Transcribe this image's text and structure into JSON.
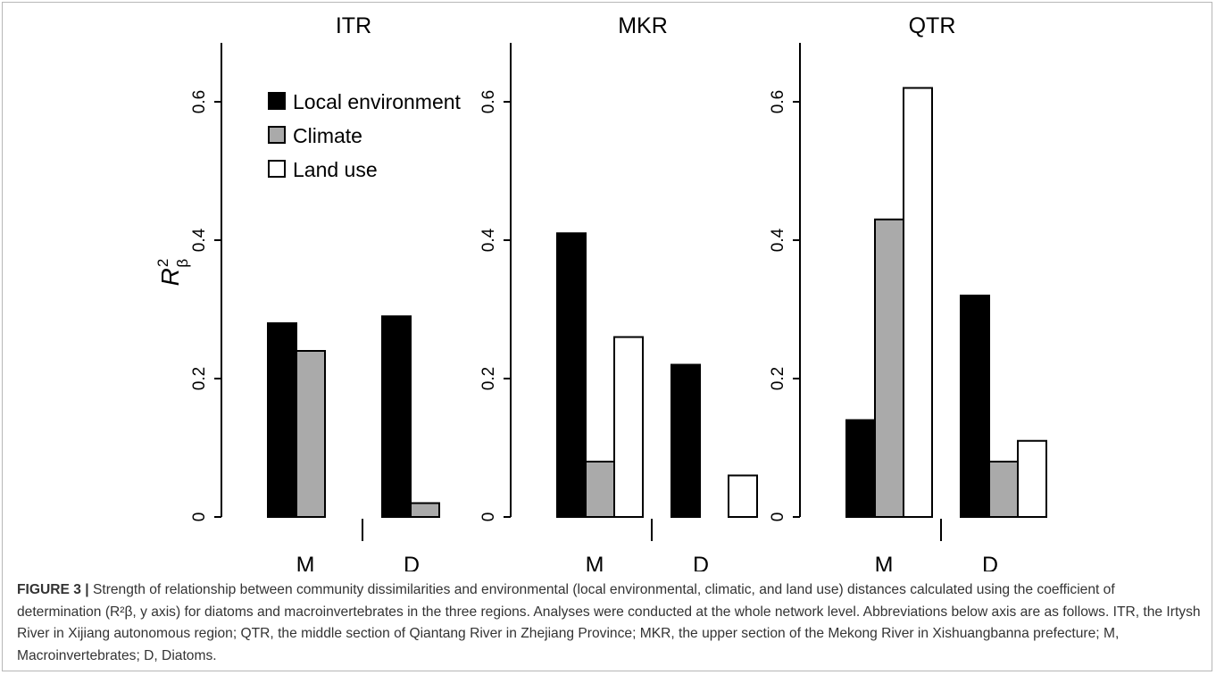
{
  "figure": {
    "caption_label": "FIGURE 3 |",
    "caption_text": " Strength of relationship between community dissimilarities and environmental (local environmental, climatic, and land use) distances calculated using the coefficient of determination (R²β, y axis) for diatoms and macroinvertebrates in the three regions. Analyses were conducted at the whole network level. Abbreviations below axis are as follows. ITR, the Irtysh River in Xijiang autonomous region; QTR, the middle section of Qiantang River in Zhejiang Province; MKR, the upper section of the Mekong River in Xishuangbanna prefecture; M, Macroinvertebrates; D, Diatoms."
  },
  "colors": {
    "local_environment": "#000000",
    "climate": "#aaaaaa",
    "land_use": "#ffffff",
    "stroke": "#000000"
  },
  "chart_data": [
    {
      "type": "bar",
      "title": "ITR",
      "ylabel": "R",
      "ylabel_sup": "2",
      "ylabel_sub": "β",
      "ylim": [
        0,
        0.7
      ],
      "yticks": [
        "0",
        "0.2",
        "0.4",
        "0.6"
      ],
      "categories": [
        "M",
        "D"
      ],
      "legend": {
        "placement": "top-left",
        "entries": [
          "Local environment",
          "Climate",
          "Land use"
        ]
      },
      "series": [
        {
          "name": "Local environment",
          "values": [
            0.28,
            0.29
          ]
        },
        {
          "name": "Climate",
          "values": [
            0.24,
            0.02
          ]
        },
        {
          "name": "Land use",
          "values": [
            0,
            0
          ]
        }
      ]
    },
    {
      "type": "bar",
      "title": "MKR",
      "ylim": [
        0,
        0.7
      ],
      "yticks": [
        "0",
        "0.2",
        "0.4",
        "0.6"
      ],
      "categories": [
        "M",
        "D"
      ],
      "series": [
        {
          "name": "Local environment",
          "values": [
            0.41,
            0.22
          ]
        },
        {
          "name": "Climate",
          "values": [
            0.08,
            0
          ]
        },
        {
          "name": "Land use",
          "values": [
            0.26,
            0.06
          ]
        }
      ]
    },
    {
      "type": "bar",
      "title": "QTR",
      "ylim": [
        0,
        0.7
      ],
      "yticks": [
        "0",
        "0.2",
        "0.4",
        "0.6"
      ],
      "categories": [
        "M",
        "D"
      ],
      "series": [
        {
          "name": "Local environment",
          "values": [
            0.14,
            0.32
          ]
        },
        {
          "name": "Climate",
          "values": [
            0.43,
            0.08
          ]
        },
        {
          "name": "Land use",
          "values": [
            0.62,
            0.11
          ]
        }
      ]
    }
  ]
}
